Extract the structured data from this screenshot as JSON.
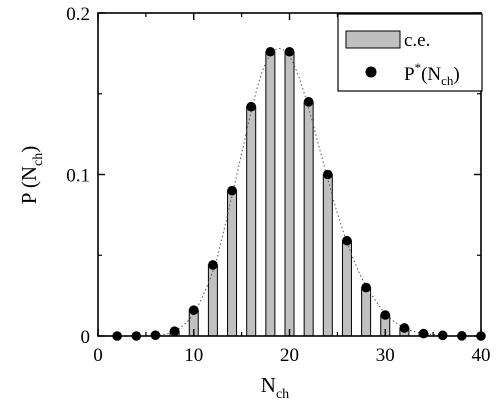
{
  "chart_data": {
    "type": "bar",
    "title": "",
    "xlabel": {
      "main": "N",
      "sub": "ch"
    },
    "ylabel": {
      "main": "P (N",
      "sub": "ch",
      "close": ")"
    },
    "xlim": [
      0,
      40
    ],
    "ylim": [
      0,
      0.2
    ],
    "xticks": [
      0,
      10,
      20,
      30,
      40
    ],
    "xtick_labels": [
      "0",
      "10",
      "20",
      "30",
      "40"
    ],
    "yticks": [
      0,
      0.1,
      0.2
    ],
    "ytick_labels": [
      "0",
      "0.1",
      "0.2"
    ],
    "grid": false,
    "legend_position": "top-right",
    "series": [
      {
        "type": "bar",
        "name": "c.e.",
        "color": "#c0c0c0",
        "x": [
          2,
          4,
          6,
          8,
          10,
          12,
          14,
          16,
          18,
          20,
          22,
          24,
          26,
          28,
          30,
          32,
          34,
          36,
          38,
          40
        ],
        "values": [
          0.0,
          0.0,
          0.0005,
          0.003,
          0.016,
          0.044,
          0.09,
          0.142,
          0.176,
          0.176,
          0.145,
          0.1,
          0.059,
          0.03,
          0.013,
          0.005,
          0.0015,
          0.0004,
          0.0001,
          0.0
        ]
      },
      {
        "type": "scatter",
        "name": "P*(N_ch)",
        "legend_label": {
          "main": "P",
          "sup": "*",
          "open": "(N",
          "sub": "ch",
          "close": ")"
        },
        "color": "#000000",
        "x": [
          2,
          4,
          6,
          8,
          10,
          12,
          14,
          16,
          18,
          20,
          22,
          24,
          26,
          28,
          30,
          32,
          34,
          36,
          38,
          40
        ],
        "values": [
          0.0,
          0.0,
          0.0005,
          0.003,
          0.016,
          0.044,
          0.09,
          0.142,
          0.176,
          0.176,
          0.145,
          0.1,
          0.059,
          0.03,
          0.013,
          0.005,
          0.0015,
          0.0004,
          0.0001,
          0.0
        ]
      },
      {
        "type": "line",
        "style": "dotted",
        "color": "#555555",
        "x": [
          6,
          8,
          10,
          12,
          13,
          14,
          15,
          16,
          17,
          18,
          19,
          20,
          21,
          22,
          23,
          24,
          25,
          26,
          27,
          28,
          30,
          32,
          34,
          36
        ],
        "values": [
          0.0003,
          0.003,
          0.014,
          0.04,
          0.062,
          0.087,
          0.113,
          0.139,
          0.161,
          0.174,
          0.178,
          0.173,
          0.16,
          0.141,
          0.119,
          0.097,
          0.076,
          0.058,
          0.043,
          0.031,
          0.014,
          0.005,
          0.0016,
          0.0004
        ]
      }
    ]
  }
}
